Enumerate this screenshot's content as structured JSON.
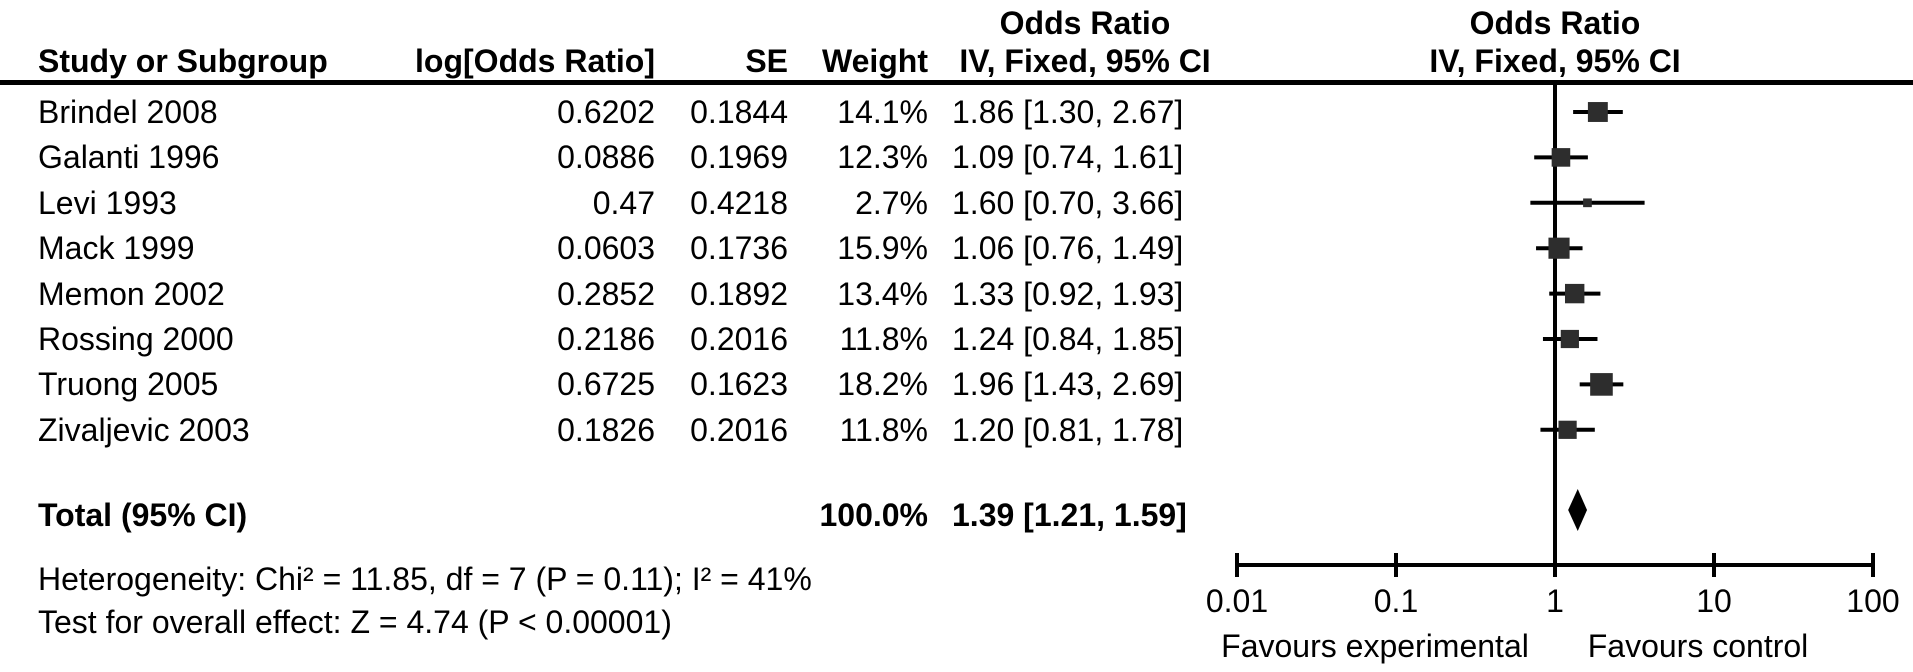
{
  "header": {
    "or_header_left": "Odds Ratio",
    "or_header_right": "Odds Ratio",
    "col_study": "Study or Subgroup",
    "col_log_or": "log[Odds Ratio]",
    "col_se": "SE",
    "col_weight": "Weight",
    "col_ci_left": "IV, Fixed, 95% CI",
    "col_ci_right": "IV, Fixed, 95% CI"
  },
  "table": {
    "rows": [
      {
        "name": "Brindel 2008",
        "log_or": "0.6202",
        "se": "0.1844",
        "weight": "14.1%",
        "ci": "1.86 [1.30, 2.67]"
      },
      {
        "name": "Galanti 1996",
        "log_or": "0.0886",
        "se": "0.1969",
        "weight": "12.3%",
        "ci": "1.09 [0.74, 1.61]"
      },
      {
        "name": "Levi 1993",
        "log_or": "0.47",
        "se": "0.4218",
        "weight": "2.7%",
        "ci": "1.60 [0.70, 3.66]"
      },
      {
        "name": "Mack 1999",
        "log_or": "0.0603",
        "se": "0.1736",
        "weight": "15.9%",
        "ci": "1.06 [0.76, 1.49]"
      },
      {
        "name": "Memon 2002",
        "log_or": "0.2852",
        "se": "0.1892",
        "weight": "13.4%",
        "ci": "1.33 [0.92, 1.93]"
      },
      {
        "name": "Rossing 2000",
        "log_or": "0.2186",
        "se": "0.2016",
        "weight": "11.8%",
        "ci": "1.24 [0.84, 1.85]"
      },
      {
        "name": "Truong 2005",
        "log_or": "0.6725",
        "se": "0.1623",
        "weight": "18.2%",
        "ci": "1.96 [1.43, 2.69]"
      },
      {
        "name": "Zivaljevic 2003",
        "log_or": "0.1826",
        "se": "0.2016",
        "weight": "11.8%",
        "ci": "1.20 [0.81, 1.78]"
      }
    ],
    "total": {
      "label": "Total (95% CI)",
      "weight": "100.0%",
      "ci": "1.39 [1.21, 1.59]"
    }
  },
  "footer": {
    "heterogeneity": "Heterogeneity: Chi² = 11.85, df = 7 (P = 0.11); I² = 41%",
    "overall_effect": "Test for overall effect: Z = 4.74 (P < 0.00001)"
  },
  "axis": {
    "tick_labels": [
      "0.01",
      "0.1",
      "1",
      "10",
      "100"
    ],
    "left_label": "Favours experimental",
    "right_label": "Favours control"
  },
  "colors": {
    "marker": "#2d2d2d",
    "line": "#000000"
  },
  "chart_data": {
    "type": "scatter",
    "subtype": "forest-plot",
    "effect_measure": "Odds Ratio",
    "model": "IV, Fixed, 95% CI",
    "x_scale": "log10",
    "x_ticks": [
      0.01,
      0.1,
      1,
      10,
      100
    ],
    "null_line": 1,
    "studies": [
      {
        "name": "Brindel 2008",
        "log_or": 0.6202,
        "se": 0.1844,
        "weight_pct": 14.1,
        "or": 1.86,
        "ci_low": 1.3,
        "ci_high": 2.67
      },
      {
        "name": "Galanti 1996",
        "log_or": 0.0886,
        "se": 0.1969,
        "weight_pct": 12.3,
        "or": 1.09,
        "ci_low": 0.74,
        "ci_high": 1.61
      },
      {
        "name": "Levi 1993",
        "log_or": 0.47,
        "se": 0.4218,
        "weight_pct": 2.7,
        "or": 1.6,
        "ci_low": 0.7,
        "ci_high": 3.66
      },
      {
        "name": "Mack 1999",
        "log_or": 0.0603,
        "se": 0.1736,
        "weight_pct": 15.9,
        "or": 1.06,
        "ci_low": 0.76,
        "ci_high": 1.49
      },
      {
        "name": "Memon 2002",
        "log_or": 0.2852,
        "se": 0.1892,
        "weight_pct": 13.4,
        "or": 1.33,
        "ci_low": 0.92,
        "ci_high": 1.93
      },
      {
        "name": "Rossing 2000",
        "log_or": 0.2186,
        "se": 0.2016,
        "weight_pct": 11.8,
        "or": 1.24,
        "ci_low": 0.84,
        "ci_high": 1.85
      },
      {
        "name": "Truong 2005",
        "log_or": 0.6725,
        "se": 0.1623,
        "weight_pct": 18.2,
        "or": 1.96,
        "ci_low": 1.43,
        "ci_high": 2.69
      },
      {
        "name": "Zivaljevic 2003",
        "log_or": 0.1826,
        "se": 0.2016,
        "weight_pct": 11.8,
        "or": 1.2,
        "ci_low": 0.81,
        "ci_high": 1.78
      }
    ],
    "total": {
      "or": 1.39,
      "ci_low": 1.21,
      "ci_high": 1.59,
      "weight_pct": 100.0
    },
    "heterogeneity": {
      "chi2": 11.85,
      "df": 7,
      "p": 0.11,
      "i2_pct": 41
    },
    "overall_effect": {
      "z": 4.74,
      "p": "< 0.00001"
    },
    "favours": {
      "left": "Favours experimental",
      "right": "Favours control"
    }
  }
}
